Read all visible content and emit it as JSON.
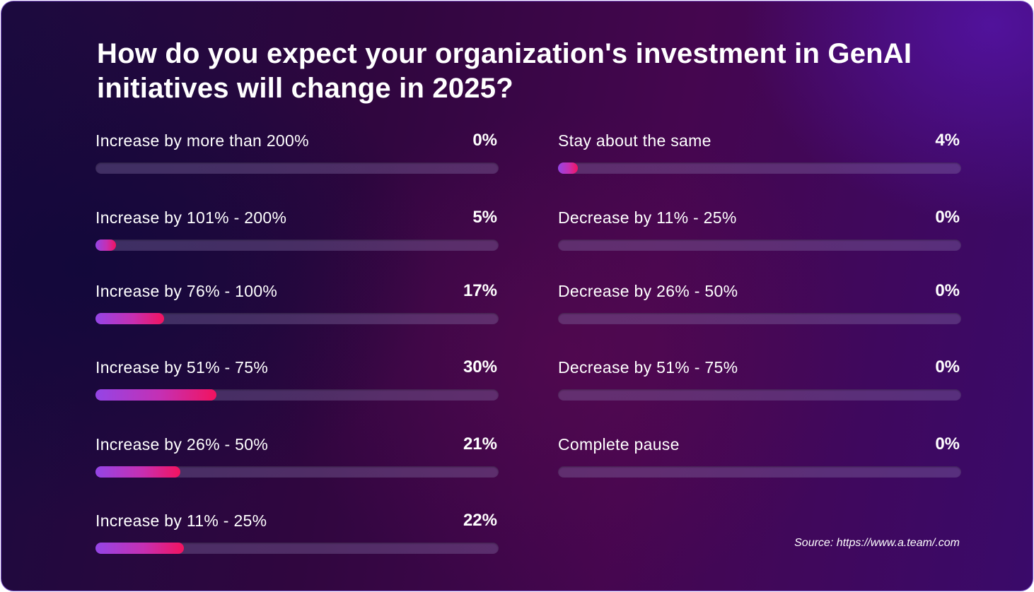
{
  "title": "How do you expect your organization's investment in GenAI initiatives will change in 2025?",
  "source": "Source: https://www.a.team/.com",
  "colors": {
    "bar_start": "#9445e6",
    "bar_end": "#f2135f",
    "track": "#5a4a7a",
    "text": "#ffffff"
  },
  "chart_data": {
    "type": "bar",
    "orientation": "horizontal",
    "title": "How do you expect your organization's investment in GenAI initiatives will change in 2025?",
    "xlim": [
      0,
      100
    ],
    "grid": false,
    "categories": [
      "Increase by more than 200%",
      "Increase by 101% - 200%",
      "Increase by 76% - 100%",
      "Increase by 51% - 75%",
      "Increase by 26% - 50%",
      "Increase by 11% - 25%",
      "Stay about the same",
      "Decrease by 11% - 25%",
      "Decrease by 26% - 50%",
      "Decrease by 51% - 75%",
      "Complete pause"
    ],
    "values": [
      0,
      5,
      17,
      30,
      21,
      22,
      4,
      0,
      0,
      0,
      0
    ],
    "labels": [
      "0%",
      "5%",
      "17%",
      "30%",
      "21%",
      "22%",
      "4%",
      "0%",
      "0%",
      "0%",
      "0%"
    ]
  }
}
